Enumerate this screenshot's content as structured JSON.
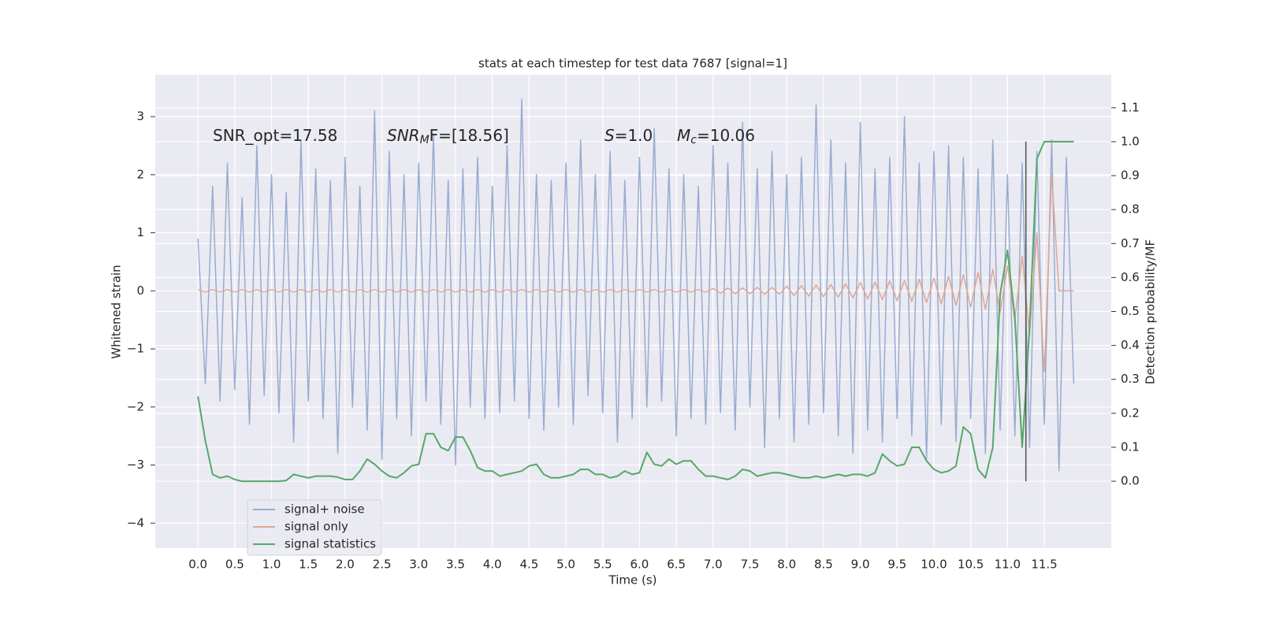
{
  "chart_data": {
    "type": "line",
    "title": "stats at each timestep for test data 7687 [signal=1]",
    "xlabel": "Time (s)",
    "ylabel": "Whitened strain",
    "y2label": "Detection probability/MF",
    "grid": true,
    "legend": "lower left",
    "annotations": [
      {
        "base": "SNR_opt=17.58"
      },
      {
        "base": "SNR",
        "sub": "M",
        "rest": "F=[18.56]"
      },
      {
        "base": "S",
        "rest": "=1.0"
      },
      {
        "base": "M",
        "sub": "c",
        "rest": "=10.06"
      }
    ],
    "vline": {
      "x": 11.25,
      "ymin": 0,
      "ymax": 1,
      "color": "#555555"
    },
    "xlim": [
      -0.58,
      12.41
    ],
    "ylim": [
      -4.43,
      3.72
    ],
    "y2lim": [
      -0.197,
      1.197
    ],
    "xticks": [
      {
        "value": 0,
        "label": "0.0"
      },
      0.5,
      {
        "value": 1,
        "label": "1.0"
      },
      1.5,
      {
        "value": 2,
        "label": "2.0"
      },
      2.5,
      {
        "value": 3,
        "label": "3.0"
      },
      3.5,
      {
        "value": 4,
        "label": "4.0"
      },
      4.5,
      {
        "value": 5,
        "label": "5.0"
      },
      5.5,
      {
        "value": 6,
        "label": "6.0"
      },
      6.5,
      {
        "value": 7,
        "label": "7.0"
      },
      7.5,
      {
        "value": 8,
        "label": "8.0"
      },
      8.5,
      {
        "value": 9,
        "label": "9.0"
      },
      9.5,
      {
        "value": 10,
        "label": "10.0"
      },
      10.5,
      {
        "value": 11,
        "label": "11.0"
      },
      11.5
    ],
    "yticks": [
      {
        "value": -4,
        "label": "−4"
      },
      {
        "value": -3,
        "label": "−3"
      },
      {
        "value": -2,
        "label": "−2"
      },
      {
        "value": -1,
        "label": "−1"
      },
      0,
      1,
      2,
      3
    ],
    "y2ticks": [
      {
        "value": 0,
        "label": "0.0"
      },
      0.1,
      0.2,
      0.3,
      0.4,
      0.5,
      0.6,
      0.7,
      0.8,
      0.9,
      {
        "value": 1,
        "label": "1.0"
      },
      1.1
    ],
    "x": [
      0.0,
      0.1,
      0.2,
      0.3,
      0.4,
      0.5,
      0.6,
      0.7,
      0.8,
      0.9,
      1.0,
      1.1,
      1.2,
      1.3,
      1.4,
      1.5,
      1.6,
      1.7,
      1.8,
      1.9,
      2.0,
      2.1,
      2.2,
      2.3,
      2.4,
      2.5,
      2.6,
      2.7,
      2.8,
      2.9,
      3.0,
      3.1,
      3.2,
      3.3,
      3.4,
      3.5,
      3.6,
      3.7,
      3.8,
      3.9,
      4.0,
      4.1,
      4.2,
      4.3,
      4.4,
      4.5,
      4.6,
      4.7,
      4.8,
      4.9,
      5.0,
      5.1,
      5.2,
      5.3,
      5.4,
      5.5,
      5.6,
      5.7,
      5.8,
      5.9,
      6.0,
      6.1,
      6.2,
      6.3,
      6.4,
      6.5,
      6.6,
      6.7,
      6.8,
      6.9,
      7.0,
      7.1,
      7.2,
      7.3,
      7.4,
      7.5,
      7.6,
      7.7,
      7.8,
      7.9,
      8.0,
      8.1,
      8.2,
      8.3,
      8.4,
      8.5,
      8.6,
      8.7,
      8.8,
      8.9,
      9.0,
      9.1,
      9.2,
      9.3,
      9.4,
      9.5,
      9.6,
      9.7,
      9.8,
      9.9,
      10.0,
      10.1,
      10.2,
      10.3,
      10.4,
      10.5,
      10.6,
      10.7,
      10.8,
      10.9,
      11.0,
      11.1,
      11.2,
      11.3,
      11.4,
      11.5,
      11.6,
      11.7,
      11.8,
      11.9
    ],
    "series": [
      {
        "name": "signal+ noise",
        "color": "#99acd1",
        "values": [
          0.9,
          -1.6,
          1.8,
          -1.9,
          2.2,
          -1.7,
          1.6,
          -2.3,
          2.5,
          -1.8,
          2.0,
          -2.1,
          1.7,
          -2.6,
          2.6,
          -1.9,
          2.1,
          -2.2,
          1.9,
          -2.8,
          2.3,
          -2.0,
          1.8,
          -2.4,
          3.1,
          -2.9,
          2.4,
          -2.2,
          2.0,
          -2.5,
          2.2,
          -1.9,
          2.7,
          -2.3,
          1.9,
          -3.0,
          2.1,
          -2.0,
          2.3,
          -2.2,
          1.8,
          -2.1,
          2.5,
          -1.9,
          3.3,
          -2.2,
          2.0,
          -2.4,
          1.9,
          -2.0,
          2.2,
          -2.3,
          2.6,
          -1.8,
          2.0,
          -2.1,
          2.4,
          -2.6,
          1.9,
          -2.2,
          2.3,
          -2.0,
          2.8,
          -1.9,
          2.1,
          -2.5,
          2.0,
          -2.2,
          1.8,
          -2.3,
          2.5,
          -2.1,
          2.2,
          -2.4,
          2.9,
          -2.0,
          2.1,
          -2.7,
          2.4,
          -2.2,
          2.0,
          -2.6,
          2.3,
          -2.3,
          3.2,
          -2.1,
          2.6,
          -2.5,
          2.2,
          -2.8,
          2.9,
          -2.4,
          2.1,
          -2.6,
          2.3,
          -2.2,
          3.0,
          -2.5,
          2.2,
          -2.9,
          2.4,
          -2.3,
          2.5,
          -2.6,
          2.3,
          -2.2,
          2.1,
          -2.8,
          2.6,
          -2.4,
          2.0,
          -2.5,
          2.2,
          -2.7,
          2.4,
          -2.3,
          2.6,
          -3.1,
          2.3,
          -1.6
        ]
      },
      {
        "name": "signal only",
        "color": "#dea692",
        "values": [
          0.02,
          -0.02,
          0.02,
          -0.02,
          0.02,
          -0.02,
          0.02,
          -0.02,
          0.02,
          -0.02,
          0.02,
          -0.02,
          0.02,
          -0.02,
          0.02,
          -0.02,
          0.02,
          -0.02,
          0.02,
          -0.02,
          0.02,
          -0.02,
          0.02,
          -0.02,
          0.02,
          -0.02,
          0.02,
          -0.02,
          0.02,
          -0.02,
          0.02,
          -0.02,
          0.02,
          -0.02,
          0.02,
          -0.02,
          0.02,
          -0.02,
          0.02,
          -0.02,
          0.02,
          -0.02,
          0.02,
          -0.02,
          0.02,
          -0.02,
          0.02,
          -0.02,
          0.02,
          -0.02,
          0.02,
          -0.02,
          0.02,
          -0.02,
          0.02,
          -0.02,
          0.02,
          -0.02,
          0.02,
          -0.02,
          0.02,
          -0.02,
          0.02,
          -0.02,
          0.02,
          -0.02,
          0.02,
          -0.02,
          0.02,
          -0.02,
          0.04,
          -0.04,
          0.05,
          -0.05,
          0.05,
          -0.05,
          0.06,
          -0.06,
          0.06,
          -0.06,
          0.08,
          -0.08,
          0.09,
          -0.09,
          0.1,
          -0.1,
          0.11,
          -0.11,
          0.12,
          -0.12,
          0.14,
          -0.14,
          0.15,
          -0.15,
          0.17,
          -0.17,
          0.18,
          -0.18,
          0.2,
          -0.2,
          0.22,
          -0.22,
          0.25,
          -0.25,
          0.28,
          -0.28,
          0.32,
          -0.32,
          0.37,
          -0.37,
          0.43,
          -0.5,
          0.6,
          -0.75,
          1.0,
          -1.4,
          2.0,
          0.0,
          0.0,
          0.0
        ]
      },
      {
        "name": "signal statistics",
        "color": "#55a868",
        "axis": "y2",
        "values": [
          0.25,
          0.12,
          0.02,
          0.01,
          0.015,
          0.005,
          0.0,
          0.0,
          0.0,
          0.0,
          0.0,
          0.0,
          0.002,
          0.02,
          0.015,
          0.01,
          0.015,
          0.015,
          0.015,
          0.012,
          0.005,
          0.005,
          0.03,
          0.065,
          0.05,
          0.03,
          0.015,
          0.01,
          0.025,
          0.045,
          0.05,
          0.14,
          0.14,
          0.1,
          0.09,
          0.13,
          0.13,
          0.09,
          0.04,
          0.03,
          0.03,
          0.015,
          0.02,
          0.025,
          0.03,
          0.045,
          0.05,
          0.02,
          0.01,
          0.01,
          0.015,
          0.02,
          0.035,
          0.035,
          0.02,
          0.02,
          0.01,
          0.015,
          0.03,
          0.02,
          0.025,
          0.085,
          0.05,
          0.045,
          0.065,
          0.05,
          0.06,
          0.06,
          0.035,
          0.015,
          0.015,
          0.01,
          0.005,
          0.015,
          0.035,
          0.03,
          0.015,
          0.02,
          0.025,
          0.025,
          0.02,
          0.015,
          0.01,
          0.01,
          0.015,
          0.01,
          0.015,
          0.02,
          0.015,
          0.02,
          0.02,
          0.015,
          0.025,
          0.08,
          0.06,
          0.045,
          0.05,
          0.1,
          0.1,
          0.06,
          0.035,
          0.025,
          0.03,
          0.045,
          0.16,
          0.14,
          0.035,
          0.01,
          0.1,
          0.55,
          0.68,
          0.48,
          0.1,
          0.45,
          0.95,
          1.0,
          1.0,
          1.0,
          1.0,
          1.0
        ]
      }
    ]
  }
}
